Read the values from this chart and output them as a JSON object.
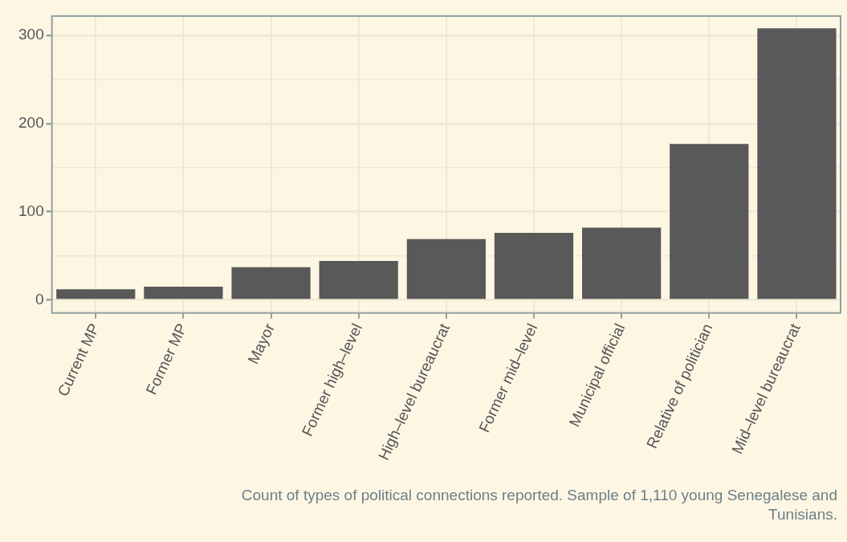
{
  "chart_data": {
    "type": "bar",
    "categories": [
      "Current MP",
      "Former MP",
      "Mayor",
      "Former high–level",
      "High–level bureaucrat",
      "Former mid–level",
      "Municipal official",
      "Relative of politician",
      "Mid–level bureaucrat"
    ],
    "values": [
      12,
      15,
      37,
      44,
      69,
      76,
      82,
      177,
      308
    ],
    "color": "#595959",
    "ylim": [
      -15,
      322
    ],
    "yticks": [
      0,
      {
        "value": 50,
        "label": null
      },
      100,
      {
        "value": 150,
        "label": null
      },
      200,
      {
        "value": 250,
        "label": null
      },
      300
    ],
    "grid": true,
    "annotations": [
      "Count of types of political connections reported. Sample of 1,110 young Senegalese and Tunisians."
    ]
  }
}
